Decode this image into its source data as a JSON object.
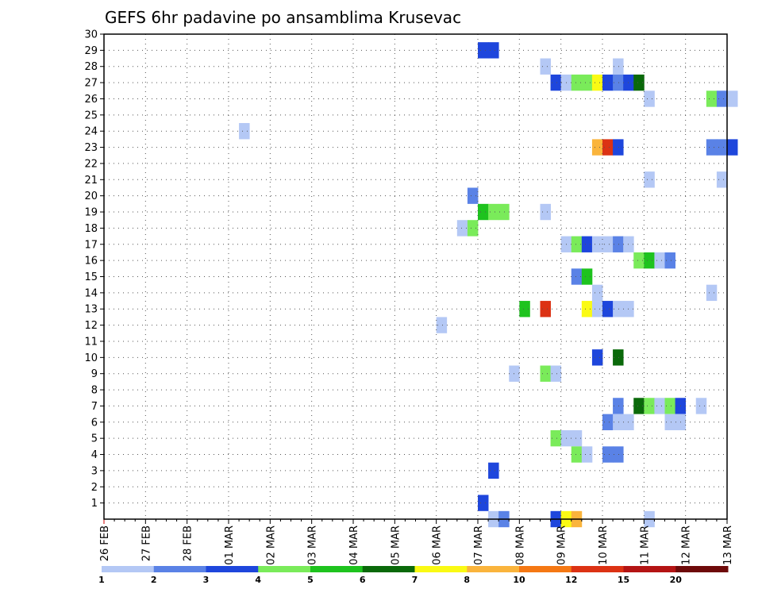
{
  "chart_data": {
    "type": "heatmap",
    "title": "GEFS 6hr padavine po ansamblima Krusevac",
    "xlabel": "",
    "ylabel": "",
    "x_ticks": [
      "26 FEB",
      "27 FEB",
      "28 FEB",
      "01 MAR",
      "02 MAR",
      "03 MAR",
      "04 MAR",
      "05 MAR",
      "06 MAR",
      "07 MAR",
      "08 MAR",
      "09 MAR",
      "10 MAR",
      "11 MAR",
      "12 MAR",
      "13 MAR"
    ],
    "y_ticks": [
      "1",
      "2",
      "3",
      "4",
      "5",
      "6",
      "7",
      "8",
      "9",
      "10",
      "11",
      "12",
      "13",
      "14",
      "15",
      "16",
      "17",
      "18",
      "19",
      "20",
      "21",
      "22",
      "23",
      "24",
      "25",
      "26",
      "27",
      "28",
      "29",
      "30"
    ],
    "x_range": [
      "26 FEB 00Z",
      "13 MAR 00Z"
    ],
    "step_hours": 6,
    "ylim": [
      0,
      30
    ],
    "grid": true,
    "colorbar": {
      "placement": "bottom",
      "colors": [
        "#b4c8f5",
        "#5a82e6",
        "#1e46dc",
        "#7aeb5a",
        "#1ec31e",
        "#0a690a",
        "#fafa14",
        "#fab43c",
        "#f57814",
        "#dc3214",
        "#b41414",
        "#6e0a0a"
      ],
      "labels": [
        "1",
        "2",
        "3",
        "4",
        "5",
        "6",
        "7",
        "8",
        "10",
        "12",
        "15",
        "20"
      ]
    },
    "cells": [
      {
        "member": 29,
        "day": 9,
        "slot": 0,
        "c": 2
      },
      {
        "member": 29,
        "day": 9,
        "slot": 1,
        "c": 2
      },
      {
        "member": 28,
        "day": 10,
        "slot": 2,
        "c": 0
      },
      {
        "member": 28,
        "day": 12,
        "slot": 1,
        "c": 0
      },
      {
        "member": 27,
        "day": 10,
        "slot": 3,
        "c": 2
      },
      {
        "member": 27,
        "day": 11,
        "slot": 0,
        "c": 0
      },
      {
        "member": 27,
        "day": 11,
        "slot": 1,
        "c": 3
      },
      {
        "member": 27,
        "day": 11,
        "slot": 2,
        "c": 3
      },
      {
        "member": 27,
        "day": 11,
        "slot": 3,
        "c": 6
      },
      {
        "member": 27,
        "day": 12,
        "slot": 0,
        "c": 2
      },
      {
        "member": 27,
        "day": 12,
        "slot": 1,
        "c": 1
      },
      {
        "member": 27,
        "day": 12,
        "slot": 2,
        "c": 2
      },
      {
        "member": 27,
        "day": 12,
        "slot": 3,
        "c": 5
      },
      {
        "member": 26,
        "day": 13,
        "slot": 0,
        "c": 0
      },
      {
        "member": 26,
        "day": 14,
        "slot": 2,
        "c": 3
      },
      {
        "member": 26,
        "day": 14,
        "slot": 3,
        "c": 1
      },
      {
        "member": 26,
        "day": 15,
        "slot": 0,
        "c": 0
      },
      {
        "member": 24,
        "day": 3,
        "slot": 1,
        "c": 0
      },
      {
        "member": 23,
        "day": 11,
        "slot": 3,
        "c": 7
      },
      {
        "member": 23,
        "day": 12,
        "slot": 0,
        "c": 9
      },
      {
        "member": 23,
        "day": 12,
        "slot": 1,
        "c": 2
      },
      {
        "member": 23,
        "day": 14,
        "slot": 2,
        "c": 1
      },
      {
        "member": 23,
        "day": 14,
        "slot": 3,
        "c": 1
      },
      {
        "member": 23,
        "day": 15,
        "slot": 0,
        "c": 2
      },
      {
        "member": 21,
        "day": 13,
        "slot": 0,
        "c": 0
      },
      {
        "member": 21,
        "day": 14,
        "slot": 3,
        "c": 0
      },
      {
        "member": 20,
        "day": 8,
        "slot": 3,
        "c": 1
      },
      {
        "member": 19,
        "day": 9,
        "slot": 0,
        "c": 4
      },
      {
        "member": 19,
        "day": 9,
        "slot": 1,
        "c": 3
      },
      {
        "member": 19,
        "day": 9,
        "slot": 2,
        "c": 3
      },
      {
        "member": 19,
        "day": 10,
        "slot": 2,
        "c": 0
      },
      {
        "member": 18,
        "day": 8,
        "slot": 2,
        "c": 0
      },
      {
        "member": 18,
        "day": 8,
        "slot": 3,
        "c": 3
      },
      {
        "member": 17,
        "day": 11,
        "slot": 0,
        "c": 0
      },
      {
        "member": 17,
        "day": 11,
        "slot": 1,
        "c": 3
      },
      {
        "member": 17,
        "day": 11,
        "slot": 2,
        "c": 2
      },
      {
        "member": 17,
        "day": 11,
        "slot": 3,
        "c": 0
      },
      {
        "member": 17,
        "day": 12,
        "slot": 0,
        "c": 0
      },
      {
        "member": 17,
        "day": 12,
        "slot": 1,
        "c": 1
      },
      {
        "member": 17,
        "day": 12,
        "slot": 2,
        "c": 0
      },
      {
        "member": 16,
        "day": 12,
        "slot": 3,
        "c": 3
      },
      {
        "member": 16,
        "day": 13,
        "slot": 0,
        "c": 4
      },
      {
        "member": 16,
        "day": 13,
        "slot": 1,
        "c": 0
      },
      {
        "member": 16,
        "day": 13,
        "slot": 2,
        "c": 1
      },
      {
        "member": 15,
        "day": 11,
        "slot": 1,
        "c": 1
      },
      {
        "member": 15,
        "day": 11,
        "slot": 2,
        "c": 4
      },
      {
        "member": 14,
        "day": 11,
        "slot": 3,
        "c": 0
      },
      {
        "member": 14,
        "day": 14,
        "slot": 2,
        "c": 0
      },
      {
        "member": 13,
        "day": 10,
        "slot": 0,
        "c": 4
      },
      {
        "member": 13,
        "day": 10,
        "slot": 2,
        "c": 9
      },
      {
        "member": 13,
        "day": 11,
        "slot": 2,
        "c": 6
      },
      {
        "member": 13,
        "day": 11,
        "slot": 3,
        "c": 0
      },
      {
        "member": 13,
        "day": 12,
        "slot": 0,
        "c": 2
      },
      {
        "member": 13,
        "day": 12,
        "slot": 1,
        "c": 0
      },
      {
        "member": 13,
        "day": 12,
        "slot": 2,
        "c": 0
      },
      {
        "member": 12,
        "day": 8,
        "slot": 0,
        "c": 0
      },
      {
        "member": 10,
        "day": 11,
        "slot": 3,
        "c": 2
      },
      {
        "member": 10,
        "day": 12,
        "slot": 1,
        "c": 5
      },
      {
        "member": 9,
        "day": 9,
        "slot": 3,
        "c": 0
      },
      {
        "member": 9,
        "day": 10,
        "slot": 2,
        "c": 3
      },
      {
        "member": 9,
        "day": 10,
        "slot": 3,
        "c": 0
      },
      {
        "member": 7,
        "day": 12,
        "slot": 1,
        "c": 1
      },
      {
        "member": 7,
        "day": 12,
        "slot": 3,
        "c": 5
      },
      {
        "member": 7,
        "day": 13,
        "slot": 0,
        "c": 3
      },
      {
        "member": 7,
        "day": 13,
        "slot": 1,
        "c": 0
      },
      {
        "member": 7,
        "day": 13,
        "slot": 2,
        "c": 3
      },
      {
        "member": 7,
        "day": 13,
        "slot": 3,
        "c": 2
      },
      {
        "member": 7,
        "day": 14,
        "slot": 1,
        "c": 0
      },
      {
        "member": 6,
        "day": 12,
        "slot": 0,
        "c": 1
      },
      {
        "member": 6,
        "day": 12,
        "slot": 1,
        "c": 0
      },
      {
        "member": 6,
        "day": 12,
        "slot": 2,
        "c": 0
      },
      {
        "member": 6,
        "day": 13,
        "slot": 2,
        "c": 0
      },
      {
        "member": 6,
        "day": 13,
        "slot": 3,
        "c": 0
      },
      {
        "member": 5,
        "day": 10,
        "slot": 3,
        "c": 3
      },
      {
        "member": 5,
        "day": 11,
        "slot": 0,
        "c": 0
      },
      {
        "member": 5,
        "day": 11,
        "slot": 1,
        "c": 0
      },
      {
        "member": 4,
        "day": 11,
        "slot": 1,
        "c": 3
      },
      {
        "member": 4,
        "day": 11,
        "slot": 2,
        "c": 0
      },
      {
        "member": 4,
        "day": 12,
        "slot": 0,
        "c": 1
      },
      {
        "member": 4,
        "day": 12,
        "slot": 1,
        "c": 1
      },
      {
        "member": 3,
        "day": 9,
        "slot": 1,
        "c": 2
      },
      {
        "member": 1,
        "day": 9,
        "slot": 0,
        "c": 2
      },
      {
        "member": 0,
        "day": 9,
        "slot": 1,
        "c": 0
      },
      {
        "member": 0,
        "day": 9,
        "slot": 2,
        "c": 1
      },
      {
        "member": 0,
        "day": 10,
        "slot": 3,
        "c": 2
      },
      {
        "member": 0,
        "day": 11,
        "slot": 0,
        "c": 6
      },
      {
        "member": 0,
        "day": 11,
        "slot": 1,
        "c": 7
      },
      {
        "member": 0,
        "day": 13,
        "slot": 0,
        "c": 0
      }
    ]
  }
}
